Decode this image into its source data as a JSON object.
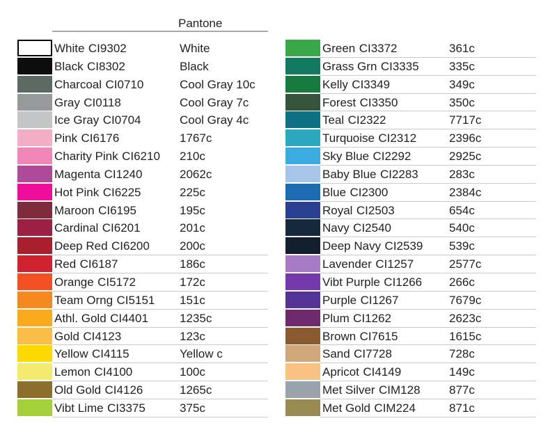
{
  "header": {
    "pantone_label": "Pantone"
  },
  "palette": {
    "text_color": "#231f20",
    "header_rule_color": "#a7a9ac",
    "row_line_color": "#c9cacc"
  },
  "columns": [
    {
      "rows": [
        {
          "name": "White",
          "code": "CI9302",
          "pantone": "White",
          "swatch": "#ffffff"
        },
        {
          "name": "Black",
          "code": "CI8302",
          "pantone": "Black",
          "swatch": "#0d0d0d"
        },
        {
          "name": "Charcoal",
          "code": "CI0710",
          "pantone": "Cool Gray 10c",
          "swatch": "#5d6a64"
        },
        {
          "name": "Gray",
          "code": "CI0118",
          "pantone": "Cool Gray 7c",
          "swatch": "#97999b"
        },
        {
          "name": "Ice Gray",
          "code": "CI0704",
          "pantone": "Cool Gray 4c",
          "swatch": "#c4c5c7"
        },
        {
          "name": "Pink",
          "code": "CI6176",
          "pantone": "1767c",
          "swatch": "#f3aec5"
        },
        {
          "name": "Charity Pink",
          "code": "CI6210",
          "pantone": "210c",
          "swatch": "#f087b8"
        },
        {
          "name": "Magenta",
          "code": "CI1240",
          "pantone": "2062c",
          "swatch": "#ae4a97"
        },
        {
          "name": "Hot Pink",
          "code": "CI6225",
          "pantone": "225c",
          "swatch": "#ef0d9b"
        },
        {
          "name": "Maroon",
          "code": "CI6195",
          "pantone": "195c",
          "swatch": "#7d2c3d"
        },
        {
          "name": "Cardinal",
          "code": "CI6201",
          "pantone": "201c",
          "swatch": "#9d2044"
        },
        {
          "name": "Deep Red",
          "code": "CI6200",
          "pantone": "200c",
          "swatch": "#aa1f2d"
        },
        {
          "name": "Red",
          "code": "CI6187",
          "pantone": "186c",
          "swatch": "#ce2231"
        },
        {
          "name": "Orange",
          "code": "CI5172",
          "pantone": "172c",
          "swatch": "#f25023"
        },
        {
          "name": "Team Orng",
          "code": "CI5151",
          "pantone": "151c",
          "swatch": "#f5891f"
        },
        {
          "name": "Athl. Gold",
          "code": "CI4401",
          "pantone": "1235c",
          "swatch": "#f9a91b"
        },
        {
          "name": "Gold",
          "code": "CI4123",
          "pantone": "123c",
          "swatch": "#fabd46"
        },
        {
          "name": "Yellow",
          "code": "CI4115",
          "pantone": "Yellow c",
          "swatch": "#fcd900"
        },
        {
          "name": "Lemon",
          "code": "CI4100",
          "pantone": "100c",
          "swatch": "#f3eb70"
        },
        {
          "name": "Old Gold",
          "code": "CI4126",
          "pantone": "1265c",
          "swatch": "#8c6e2d"
        },
        {
          "name": "Vibt Lime",
          "code": "CI3375",
          "pantone": "375c",
          "swatch": "#a4cf39"
        }
      ]
    },
    {
      "rows": [
        {
          "name": "Green",
          "code": "CI3372",
          "pantone": "361c",
          "swatch": "#3aa748"
        },
        {
          "name": "Grass Grn",
          "code": "CI3335",
          "pantone": "335c",
          "swatch": "#117a60"
        },
        {
          "name": "Kelly",
          "code": "CI3349",
          "pantone": "349c",
          "swatch": "#157b3f"
        },
        {
          "name": "Forest",
          "code": "CI3350",
          "pantone": "350c",
          "swatch": "#35543a"
        },
        {
          "name": "Teal",
          "code": "CI2322",
          "pantone": "7717c",
          "swatch": "#0e7183"
        },
        {
          "name": "Turquoise",
          "code": "CI2312",
          "pantone": "2396c",
          "swatch": "#2ba7bf"
        },
        {
          "name": "Sky Blue",
          "code": "CI2292",
          "pantone": "2925c",
          "swatch": "#3babe0"
        },
        {
          "name": "Baby Blue",
          "code": "CI2283",
          "pantone": "283c",
          "swatch": "#a6c5e9"
        },
        {
          "name": "Blue",
          "code": "CI2300",
          "pantone": "2384c",
          "swatch": "#1d6cb2"
        },
        {
          "name": "Royal",
          "code": "CI2503",
          "pantone": "654c",
          "swatch": "#2a3f90"
        },
        {
          "name": "Navy",
          "code": "CI2540",
          "pantone": "540c",
          "swatch": "#14293c"
        },
        {
          "name": "Deep Navy",
          "code": "CI2539",
          "pantone": "539c",
          "swatch": "#131f2e"
        },
        {
          "name": "Lavender",
          "code": "CI1257",
          "pantone": "2577c",
          "swatch": "#a87bc6"
        },
        {
          "name": "Vibt Purple",
          "code": "CI1266",
          "pantone": "266c",
          "swatch": "#7439aa"
        },
        {
          "name": "Purple",
          "code": "CI1267",
          "pantone": "7679c",
          "swatch": "#543397"
        },
        {
          "name": "Plum",
          "code": "CI1262",
          "pantone": "2623c",
          "swatch": "#6f2a6d"
        },
        {
          "name": "Brown",
          "code": "CI7615",
          "pantone": "1615c",
          "swatch": "#8b5a2e"
        },
        {
          "name": "Sand",
          "code": "CI7728",
          "pantone": "728c",
          "swatch": "#d0a77a"
        },
        {
          "name": "Apricot",
          "code": "CI4149",
          "pantone": "149c",
          "swatch": "#fac184"
        },
        {
          "name": "Met Silver",
          "code": "CIM128",
          "pantone": "877c",
          "swatch": "#9aa2ac"
        },
        {
          "name": "Met Gold",
          "code": "CIM224",
          "pantone": "871c",
          "swatch": "#9a8b52"
        }
      ]
    }
  ]
}
